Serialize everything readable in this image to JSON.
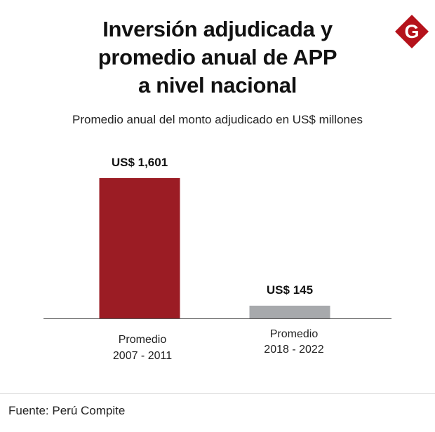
{
  "header": {
    "title_lines": [
      "Inversión adjudicada y",
      "promedio anual de APP",
      "a nivel nacional"
    ],
    "logo_letter": "G",
    "logo_icon": "gestion-g-logo",
    "subtitle": "Promedio anual del monto adjudicado en US$ millones"
  },
  "chart_data": {
    "type": "bar",
    "title": "",
    "categories": [
      [
        "Promedio",
        "2007 - 2011"
      ],
      [
        "Promedio",
        "2018 - 2022"
      ]
    ],
    "values": [
      1601,
      145
    ],
    "value_labels": [
      "US$ 1,601",
      "US$ 145"
    ],
    "colors": [
      "#9b1c24",
      "#a7a9ac"
    ],
    "ylim": [
      0,
      1601
    ],
    "xlabel": "",
    "ylabel": "",
    "grid": false,
    "legend": false
  },
  "colors": {
    "brand_red": "#b5121b",
    "bar_primary": "#9b1c24",
    "bar_secondary": "#a7a9ac",
    "baseline": "#555555"
  },
  "footer": {
    "source": "Fuente: Perú Compite"
  }
}
